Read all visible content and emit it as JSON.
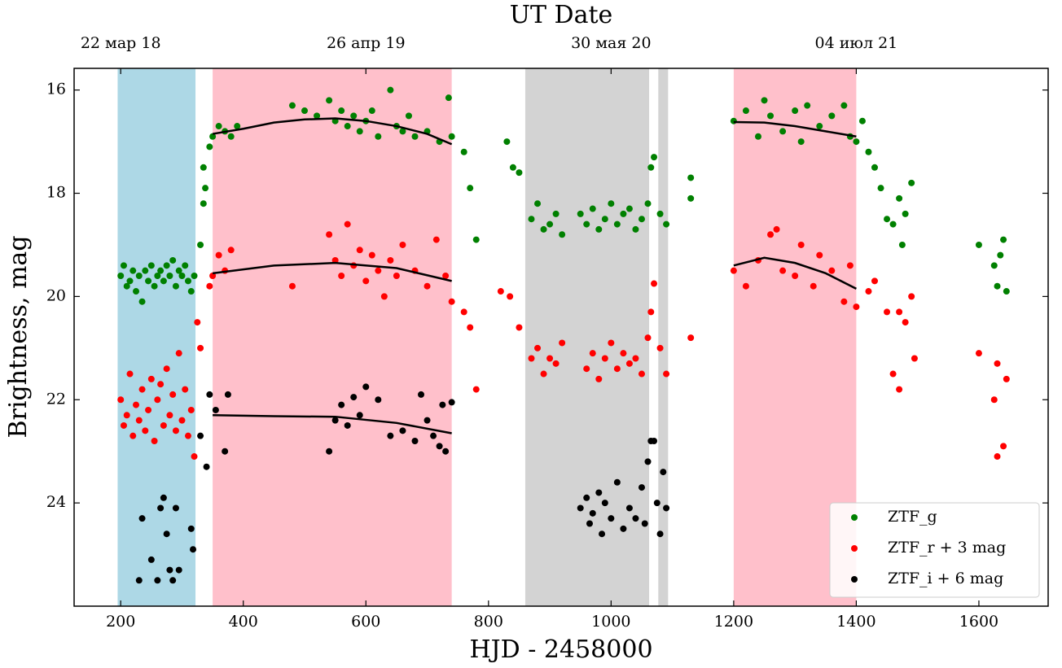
{
  "chart_data": {
    "type": "scatter",
    "title": "UT Date",
    "xlabel": "HJD - 2458000",
    "ylabel": "Brightness, mag",
    "xlim": [
      124,
      1713
    ],
    "ylim": [
      26.0,
      15.58
    ],
    "xticks": [
      200,
      400,
      600,
      800,
      1000,
      1200,
      1400,
      1600
    ],
    "yticks": [
      16,
      18,
      20,
      22,
      24
    ],
    "x2ticks": [
      {
        "value": 200,
        "label": "22 мар 18"
      },
      {
        "value": 600,
        "label": "26 апр 19"
      },
      {
        "value": 1000,
        "label": "30 мая 20"
      },
      {
        "value": 1400,
        "label": "04 июл 21"
      }
    ],
    "legend": "lower right",
    "spans": [
      {
        "start": 195,
        "end": 322,
        "color": "#add8e6"
      },
      {
        "start": 350,
        "end": 740,
        "color": "#ffc0cb"
      },
      {
        "start": 860,
        "end": 1062,
        "color": "#d3d3d3"
      },
      {
        "start": 1077,
        "end": 1093,
        "color": "#d3d3d3"
      },
      {
        "start": 1200,
        "end": 1400,
        "color": "#ffc0cb"
      }
    ],
    "fits": [
      {
        "color": "#000000",
        "x": [
          350,
          400,
          450,
          500,
          550,
          600,
          650,
          700,
          740
        ],
        "y": [
          16.85,
          16.75,
          16.63,
          16.57,
          16.55,
          16.6,
          16.7,
          16.85,
          17.05
        ]
      },
      {
        "color": "#000000",
        "x": [
          1200,
          1250,
          1300,
          1350,
          1400
        ],
        "y": [
          16.62,
          16.63,
          16.7,
          16.8,
          16.9
        ]
      },
      {
        "color": "#000000",
        "x": [
          350,
          450,
          550,
          650,
          740
        ],
        "y": [
          19.55,
          19.4,
          19.35,
          19.45,
          19.7
        ]
      },
      {
        "color": "#000000",
        "x": [
          1200,
          1250,
          1300,
          1350,
          1400
        ],
        "y": [
          19.4,
          19.25,
          19.35,
          19.55,
          19.85
        ]
      },
      {
        "color": "#000000",
        "x": [
          350,
          450,
          550,
          650,
          740
        ],
        "y": [
          22.3,
          22.32,
          22.33,
          22.45,
          22.65
        ]
      }
    ],
    "series": [
      {
        "name": "ZTF_g",
        "color": "#008000",
        "x": [
          200,
          205,
          210,
          215,
          220,
          225,
          230,
          235,
          240,
          245,
          250,
          255,
          260,
          265,
          270,
          275,
          280,
          285,
          290,
          295,
          300,
          305,
          310,
          315,
          320,
          330,
          335,
          335,
          338,
          345,
          350,
          360,
          370,
          380,
          390,
          480,
          500,
          520,
          540,
          550,
          560,
          570,
          580,
          590,
          600,
          610,
          620,
          640,
          650,
          660,
          670,
          680,
          700,
          720,
          735,
          740,
          760,
          770,
          780,
          830,
          840,
          850,
          870,
          880,
          890,
          900,
          910,
          920,
          950,
          960,
          970,
          980,
          990,
          1000,
          1010,
          1020,
          1030,
          1040,
          1050,
          1060,
          1065,
          1070,
          1080,
          1090,
          1130,
          1130,
          1200,
          1220,
          1240,
          1250,
          1260,
          1280,
          1300,
          1310,
          1320,
          1340,
          1360,
          1380,
          1390,
          1400,
          1410,
          1420,
          1430,
          1440,
          1450,
          1460,
          1470,
          1480,
          1490,
          1475,
          1600,
          1625,
          1630,
          1640,
          1645,
          1635
        ],
        "values": [
          19.6,
          19.4,
          19.8,
          19.7,
          19.5,
          19.9,
          19.6,
          20.1,
          19.5,
          19.7,
          19.4,
          19.8,
          19.6,
          19.5,
          19.7,
          19.4,
          19.6,
          19.3,
          19.8,
          19.5,
          19.6,
          19.4,
          19.7,
          19.9,
          19.6,
          19.0,
          18.2,
          17.5,
          17.9,
          17.1,
          16.9,
          16.7,
          16.8,
          16.9,
          16.7,
          16.3,
          16.4,
          16.5,
          16.2,
          16.6,
          16.4,
          16.7,
          16.5,
          16.8,
          16.6,
          16.4,
          16.9,
          16.0,
          16.7,
          16.8,
          16.5,
          16.9,
          16.8,
          17.0,
          16.15,
          16.9,
          17.2,
          17.9,
          18.9,
          17.0,
          17.5,
          17.6,
          18.5,
          18.2,
          18.7,
          18.6,
          18.4,
          18.8,
          18.4,
          18.6,
          18.3,
          18.7,
          18.5,
          18.2,
          18.6,
          18.4,
          18.3,
          18.7,
          18.5,
          18.2,
          17.5,
          17.3,
          18.4,
          18.6,
          17.7,
          18.1,
          16.6,
          16.4,
          16.9,
          16.2,
          16.5,
          16.8,
          16.4,
          17.0,
          16.3,
          16.7,
          16.5,
          16.3,
          16.9,
          17.0,
          16.6,
          17.2,
          17.5,
          17.9,
          18.5,
          18.6,
          18.1,
          18.4,
          17.8,
          19.0,
          19.0,
          19.4,
          19.8,
          18.9,
          19.9,
          19.2
        ]
      },
      {
        "name": "ZTF_r + 3 mag",
        "color": "#ff0000",
        "x": [
          200,
          205,
          210,
          215,
          220,
          225,
          230,
          235,
          240,
          245,
          250,
          255,
          260,
          265,
          270,
          275,
          280,
          285,
          290,
          295,
          300,
          305,
          310,
          315,
          320,
          325,
          330,
          345,
          350,
          360,
          370,
          380,
          480,
          540,
          550,
          560,
          570,
          580,
          590,
          600,
          610,
          620,
          630,
          640,
          650,
          660,
          680,
          700,
          715,
          730,
          740,
          760,
          770,
          780,
          820,
          835,
          850,
          870,
          880,
          890,
          900,
          910,
          920,
          960,
          970,
          980,
          990,
          1000,
          1010,
          1020,
          1030,
          1040,
          1050,
          1060,
          1065,
          1070,
          1080,
          1090,
          1130,
          1200,
          1220,
          1240,
          1260,
          1270,
          1280,
          1300,
          1310,
          1330,
          1340,
          1360,
          1380,
          1390,
          1400,
          1420,
          1430,
          1450,
          1460,
          1470,
          1480,
          1490,
          1495,
          1470,
          1600,
          1625,
          1630,
          1640,
          1645,
          1630
        ],
        "values": [
          22.0,
          22.5,
          22.3,
          21.5,
          22.7,
          22.1,
          22.4,
          21.8,
          22.6,
          22.2,
          21.6,
          22.8,
          22.0,
          21.7,
          22.5,
          21.4,
          22.3,
          21.9,
          22.6,
          21.1,
          22.4,
          21.8,
          22.7,
          22.2,
          23.1,
          20.5,
          21.0,
          19.8,
          19.6,
          19.2,
          19.5,
          19.1,
          19.8,
          18.8,
          19.3,
          19.6,
          18.6,
          19.4,
          19.1,
          19.7,
          19.2,
          19.5,
          20.0,
          19.3,
          19.6,
          19.0,
          19.5,
          19.8,
          18.9,
          19.6,
          20.1,
          20.3,
          20.6,
          21.8,
          19.9,
          20.0,
          20.6,
          21.2,
          21.0,
          21.5,
          21.2,
          21.3,
          20.9,
          21.4,
          21.1,
          21.6,
          21.2,
          20.9,
          21.4,
          21.1,
          21.3,
          21.2,
          21.5,
          20.8,
          20.3,
          19.75,
          21.0,
          21.5,
          20.8,
          19.5,
          19.8,
          19.3,
          18.8,
          18.7,
          19.5,
          19.6,
          19.0,
          19.8,
          19.2,
          19.5,
          20.1,
          19.4,
          20.2,
          19.9,
          19.7,
          20.3,
          21.5,
          21.8,
          20.5,
          20.0,
          21.2,
          20.3,
          21.1,
          22.0,
          23.1,
          22.9,
          21.6,
          21.3
        ]
      },
      {
        "name": "ZTF_i + 6 mag",
        "color": "#000000",
        "x": [
          230,
          235,
          250,
          260,
          265,
          270,
          275,
          280,
          285,
          290,
          295,
          315,
          318,
          330,
          340,
          345,
          355,
          370,
          375,
          540,
          550,
          560,
          570,
          580,
          590,
          600,
          620,
          640,
          660,
          680,
          690,
          700,
          720,
          725,
          740,
          710,
          730,
          950,
          960,
          965,
          970,
          980,
          985,
          990,
          1000,
          1010,
          1020,
          1030,
          1040,
          1050,
          1055,
          1060,
          1065,
          1070,
          1075,
          1080,
          1085,
          1090
        ],
        "values": [
          25.5,
          24.3,
          25.1,
          25.5,
          24.1,
          23.9,
          24.6,
          25.3,
          25.5,
          24.1,
          25.3,
          24.5,
          24.9,
          22.7,
          23.3,
          21.9,
          22.2,
          23.0,
          21.9,
          23.0,
          22.4,
          22.1,
          22.5,
          21.95,
          22.3,
          21.75,
          22.0,
          22.7,
          22.6,
          22.8,
          21.9,
          22.4,
          22.9,
          22.1,
          22.05,
          22.7,
          23.0,
          24.1,
          23.9,
          24.4,
          24.2,
          23.8,
          24.6,
          24.0,
          24.3,
          23.6,
          24.5,
          24.1,
          24.3,
          23.7,
          24.4,
          23.2,
          22.8,
          22.8,
          24.0,
          24.6,
          23.4,
          24.1
        ]
      }
    ]
  }
}
